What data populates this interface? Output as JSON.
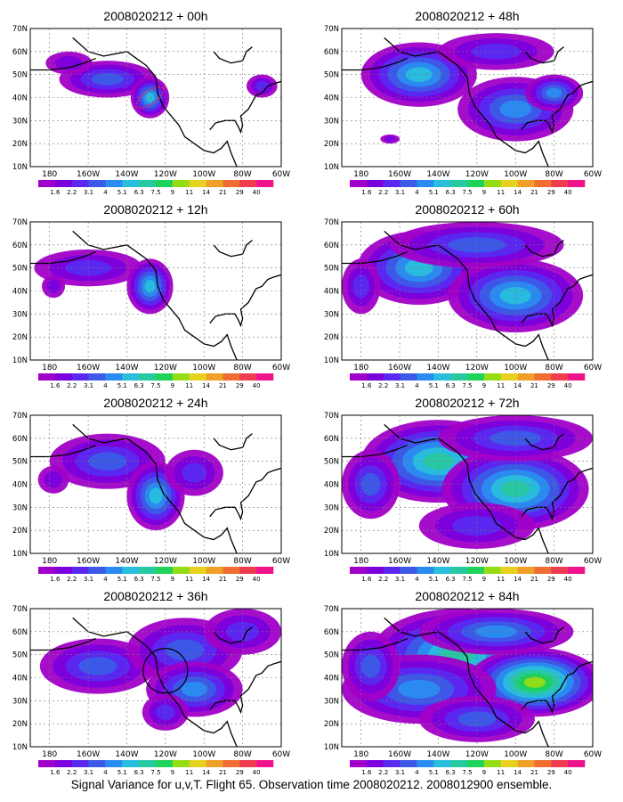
{
  "caption": "Signal Variance for u,v,T. Flight 65. Observation time 2008020212. 2008012900 ensemble.",
  "colorbar": {
    "labels": [
      "1.6",
      "2.2",
      "3.1",
      "4",
      "5.1",
      "6.3",
      "7.5",
      "9",
      "11",
      "14",
      "21",
      "29",
      "40"
    ],
    "colors": [
      "#a000c8",
      "#7a00dc",
      "#5a28f0",
      "#3c5ae6",
      "#2a8cf0",
      "#28bedc",
      "#28c8a0",
      "#1ed25a",
      "#96dc14",
      "#e6d21e",
      "#f0a028",
      "#f06e32",
      "#f03c50",
      "#f0148c"
    ]
  },
  "axes": {
    "x_ticks": [
      "180",
      "160W",
      "140W",
      "120W",
      "100W",
      "80W",
      "60W"
    ],
    "y_ticks": [
      "10N",
      "20N",
      "30N",
      "40N",
      "50N",
      "60N",
      "70N"
    ]
  },
  "chart_data": [
    {
      "type": "heatmap",
      "title": "2008020212 + 00h",
      "x_ticks": [
        "180",
        "160W",
        "140W",
        "120W",
        "100W",
        "80W",
        "60W"
      ],
      "y_ticks": [
        "10N",
        "20N",
        "30N",
        "40N",
        "50N",
        "60N",
        "70N"
      ],
      "lon_range": [
        -190,
        -60
      ],
      "lat_range": [
        10,
        70
      ],
      "blobs": [
        {
          "lon": -150,
          "lat": 48,
          "rlon": 25,
          "rlat": 8,
          "level": 3
        },
        {
          "lon": -128,
          "lat": 40,
          "rlon": 10,
          "rlat": 9,
          "level": 5
        },
        {
          "lon": -170,
          "lat": 55,
          "rlon": 12,
          "rlat": 5,
          "level": 1
        },
        {
          "lon": -70,
          "lat": 45,
          "rlon": 8,
          "rlat": 5,
          "level": 2
        }
      ]
    },
    {
      "type": "heatmap",
      "title": "2008020212 + 48h",
      "x_ticks": [
        "180",
        "160W",
        "140W",
        "120W",
        "100W",
        "80W",
        "60W"
      ],
      "y_ticks": [
        "10N",
        "20N",
        "30N",
        "40N",
        "50N",
        "60N",
        "70N"
      ],
      "lon_range": [
        -190,
        -60
      ],
      "lat_range": [
        10,
        70
      ],
      "blobs": [
        {
          "lon": -150,
          "lat": 50,
          "rlon": 30,
          "rlat": 14,
          "level": 5
        },
        {
          "lon": -100,
          "lat": 35,
          "rlon": 30,
          "rlat": 14,
          "level": 4
        },
        {
          "lon": -110,
          "lat": 60,
          "rlon": 30,
          "rlat": 8,
          "level": 2
        },
        {
          "lon": -80,
          "lat": 42,
          "rlon": 15,
          "rlat": 8,
          "level": 4
        },
        {
          "lon": -165,
          "lat": 22,
          "rlon": 5,
          "rlat": 2,
          "level": 1
        }
      ]
    },
    {
      "type": "heatmap",
      "title": "2008020212 + 12h",
      "x_ticks": [
        "180",
        "160W",
        "140W",
        "120W",
        "100W",
        "80W",
        "60W"
      ],
      "y_ticks": [
        "10N",
        "20N",
        "30N",
        "40N",
        "50N",
        "60N",
        "70N"
      ],
      "lon_range": [
        -190,
        -60
      ],
      "lat_range": [
        10,
        70
      ],
      "blobs": [
        {
          "lon": -160,
          "lat": 50,
          "rlon": 28,
          "rlat": 8,
          "level": 2
        },
        {
          "lon": -128,
          "lat": 42,
          "rlon": 12,
          "rlat": 12,
          "level": 5
        },
        {
          "lon": -178,
          "lat": 42,
          "rlon": 6,
          "rlat": 5,
          "level": 1
        }
      ]
    },
    {
      "type": "heatmap",
      "title": "2008020212 + 60h",
      "x_ticks": [
        "180",
        "160W",
        "140W",
        "120W",
        "100W",
        "80W",
        "60W"
      ],
      "y_ticks": [
        "10N",
        "20N",
        "30N",
        "40N",
        "50N",
        "60N",
        "70N"
      ],
      "lon_range": [
        -190,
        -60
      ],
      "lat_range": [
        10,
        70
      ],
      "blobs": [
        {
          "lon": -150,
          "lat": 50,
          "rlon": 32,
          "rlat": 16,
          "level": 5
        },
        {
          "lon": -100,
          "lat": 38,
          "rlon": 35,
          "rlat": 16,
          "level": 5
        },
        {
          "lon": -120,
          "lat": 60,
          "rlon": 45,
          "rlat": 10,
          "level": 3
        },
        {
          "lon": -180,
          "lat": 42,
          "rlon": 10,
          "rlat": 12,
          "level": 2
        }
      ]
    },
    {
      "type": "heatmap",
      "title": "2008020212 + 24h",
      "x_ticks": [
        "180",
        "160W",
        "140W",
        "120W",
        "100W",
        "80W",
        "60W"
      ],
      "y_ticks": [
        "10N",
        "20N",
        "30N",
        "40N",
        "50N",
        "60N",
        "70N"
      ],
      "lon_range": [
        -190,
        -60
      ],
      "lat_range": [
        10,
        70
      ],
      "blobs": [
        {
          "lon": -150,
          "lat": 50,
          "rlon": 30,
          "rlat": 12,
          "level": 3
        },
        {
          "lon": -125,
          "lat": 35,
          "rlon": 15,
          "rlat": 15,
          "level": 5
        },
        {
          "lon": -105,
          "lat": 45,
          "rlon": 15,
          "rlat": 10,
          "level": 2
        },
        {
          "lon": -178,
          "lat": 42,
          "rlon": 8,
          "rlat": 6,
          "level": 1
        }
      ]
    },
    {
      "type": "heatmap",
      "title": "2008020212 + 72h",
      "x_ticks": [
        "180",
        "160W",
        "140W",
        "120W",
        "100W",
        "80W",
        "60W"
      ],
      "y_ticks": [
        "10N",
        "20N",
        "30N",
        "40N",
        "50N",
        "60N",
        "70N"
      ],
      "lon_range": [
        -190,
        -60
      ],
      "lat_range": [
        10,
        70
      ],
      "blobs": [
        {
          "lon": -140,
          "lat": 50,
          "rlon": 40,
          "rlat": 18,
          "level": 6
        },
        {
          "lon": -100,
          "lat": 38,
          "rlon": 38,
          "rlat": 18,
          "level": 6
        },
        {
          "lon": -100,
          "lat": 60,
          "rlon": 40,
          "rlat": 10,
          "level": 3
        },
        {
          "lon": -175,
          "lat": 40,
          "rlon": 15,
          "rlat": 15,
          "level": 3
        },
        {
          "lon": -120,
          "lat": 22,
          "rlon": 30,
          "rlat": 10,
          "level": 2
        }
      ]
    },
    {
      "type": "heatmap",
      "title": "2008020212 + 36h",
      "x_ticks": [
        "180",
        "160W",
        "140W",
        "120W",
        "100W",
        "80W",
        "60W"
      ],
      "y_ticks": [
        "10N",
        "20N",
        "30N",
        "40N",
        "50N",
        "60N",
        "70N"
      ],
      "lon_range": [
        -190,
        -60
      ],
      "lat_range": [
        10,
        70
      ],
      "blobs": [
        {
          "lon": -155,
          "lat": 45,
          "rlon": 30,
          "rlat": 12,
          "level": 3
        },
        {
          "lon": -110,
          "lat": 52,
          "rlon": 30,
          "rlat": 14,
          "level": 3
        },
        {
          "lon": -105,
          "lat": 35,
          "rlon": 25,
          "rlat": 12,
          "level": 4
        },
        {
          "lon": -80,
          "lat": 60,
          "rlon": 20,
          "rlat": 10,
          "level": 2
        },
        {
          "lon": -120,
          "lat": 25,
          "rlon": 12,
          "rlat": 8,
          "level": 2
        }
      ]
    },
    {
      "type": "heatmap",
      "title": "2008020212 + 84h",
      "x_ticks": [
        "180",
        "160W",
        "140W",
        "120W",
        "100W",
        "80W",
        "60W"
      ],
      "y_ticks": [
        "10N",
        "20N",
        "30N",
        "40N",
        "50N",
        "60N",
        "70N"
      ],
      "lon_range": [
        -190,
        -60
      ],
      "lat_range": [
        10,
        70
      ],
      "blobs": [
        {
          "lon": -130,
          "lat": 50,
          "rlon": 45,
          "rlat": 20,
          "level": 6
        },
        {
          "lon": -90,
          "lat": 38,
          "rlon": 35,
          "rlat": 15,
          "level": 8
        },
        {
          "lon": -150,
          "lat": 35,
          "rlon": 40,
          "rlat": 15,
          "level": 4
        },
        {
          "lon": -110,
          "lat": 60,
          "rlon": 40,
          "rlat": 10,
          "level": 4
        },
        {
          "lon": -175,
          "lat": 45,
          "rlon": 15,
          "rlat": 15,
          "level": 3
        },
        {
          "lon": -120,
          "lat": 22,
          "rlon": 30,
          "rlat": 10,
          "level": 3
        }
      ]
    }
  ]
}
